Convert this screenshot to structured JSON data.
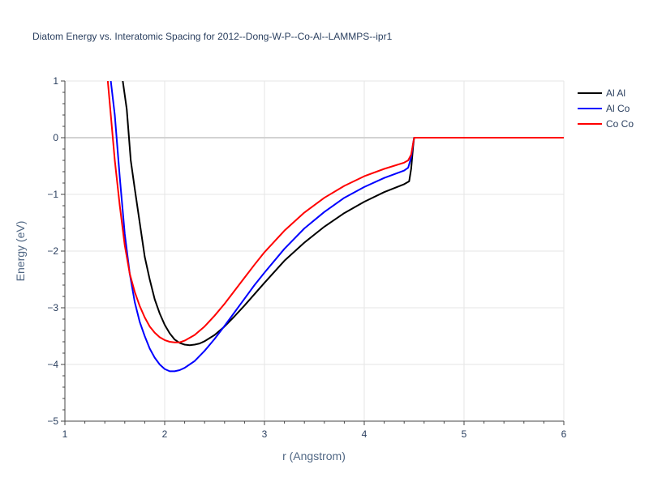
{
  "chart_data": {
    "type": "line",
    "title": "Diatom Energy vs. Interatomic Spacing for 2012--Dong-W-P--Co-Al--LAMMPS--ipr1",
    "xlabel": "r (Angstrom)",
    "ylabel": "Energy (eV)",
    "xlim": [
      1,
      6
    ],
    "ylim": [
      -5,
      1
    ],
    "xticks": [
      1,
      2,
      3,
      4,
      5,
      6
    ],
    "xtick_labels": [
      "1",
      "2",
      "3",
      "4",
      "5",
      "6"
    ],
    "yticks": [
      -5,
      -4,
      -3,
      -2,
      -1,
      0,
      1
    ],
    "ytick_labels": [
      "−5",
      "−4",
      "−3",
      "−2",
      "−1",
      "0",
      "1"
    ],
    "grid": true,
    "legend_position": "top-right",
    "series": [
      {
        "name": "Al Al",
        "color": "#000000",
        "x": [
          1.58,
          1.62,
          1.66,
          1.7,
          1.75,
          1.8,
          1.85,
          1.9,
          1.95,
          2.0,
          2.05,
          2.1,
          2.15,
          2.2,
          2.25,
          2.3,
          2.35,
          2.4,
          2.5,
          2.6,
          2.7,
          2.8,
          2.9,
          3.0,
          3.2,
          3.4,
          3.6,
          3.8,
          4.0,
          4.2,
          4.4,
          4.45,
          4.47,
          4.49,
          4.5,
          4.55,
          5.0,
          5.5,
          6.0
        ],
        "y": [
          1.0,
          0.5,
          -0.4,
          -0.9,
          -1.5,
          -2.1,
          -2.5,
          -2.85,
          -3.1,
          -3.3,
          -3.45,
          -3.56,
          -3.62,
          -3.65,
          -3.66,
          -3.65,
          -3.63,
          -3.59,
          -3.48,
          -3.33,
          -3.15,
          -2.96,
          -2.76,
          -2.56,
          -2.17,
          -1.85,
          -1.57,
          -1.33,
          -1.13,
          -0.96,
          -0.82,
          -0.77,
          -0.55,
          -0.15,
          0.0,
          0.0,
          0.0,
          0.0,
          0.0
        ]
      },
      {
        "name": "Al Co",
        "color": "#0000ff",
        "x": [
          1.46,
          1.5,
          1.55,
          1.6,
          1.65,
          1.7,
          1.75,
          1.8,
          1.85,
          1.9,
          1.95,
          2.0,
          2.05,
          2.1,
          2.15,
          2.2,
          2.25,
          2.3,
          2.4,
          2.5,
          2.6,
          2.7,
          2.8,
          2.9,
          3.0,
          3.2,
          3.4,
          3.6,
          3.8,
          4.0,
          4.2,
          4.4,
          4.44,
          4.47,
          4.49,
          4.5,
          4.55,
          5.0,
          5.5,
          6.0
        ],
        "y": [
          1.0,
          0.4,
          -0.7,
          -1.7,
          -2.4,
          -2.9,
          -3.25,
          -3.5,
          -3.72,
          -3.88,
          -4.0,
          -4.08,
          -4.12,
          -4.12,
          -4.1,
          -4.06,
          -4.0,
          -3.94,
          -3.76,
          -3.55,
          -3.32,
          -3.08,
          -2.84,
          -2.6,
          -2.38,
          -1.96,
          -1.6,
          -1.31,
          -1.06,
          -0.87,
          -0.71,
          -0.58,
          -0.53,
          -0.35,
          -0.1,
          0.0,
          0.0,
          0.0,
          0.0,
          0.0
        ]
      },
      {
        "name": "Co Co",
        "color": "#ff0000",
        "x": [
          1.43,
          1.47,
          1.5,
          1.55,
          1.6,
          1.65,
          1.7,
          1.75,
          1.8,
          1.85,
          1.9,
          1.95,
          2.0,
          2.05,
          2.1,
          2.15,
          2.2,
          2.3,
          2.4,
          2.5,
          2.6,
          2.7,
          2.8,
          2.9,
          3.0,
          3.2,
          3.4,
          3.6,
          3.8,
          4.0,
          4.2,
          4.4,
          4.44,
          4.47,
          4.49,
          4.5,
          4.55,
          5.0,
          5.5,
          6.0
        ],
        "y": [
          1.0,
          0.2,
          -0.4,
          -1.2,
          -1.9,
          -2.4,
          -2.72,
          -2.97,
          -3.17,
          -3.33,
          -3.44,
          -3.52,
          -3.57,
          -3.6,
          -3.61,
          -3.61,
          -3.58,
          -3.48,
          -3.33,
          -3.14,
          -2.93,
          -2.7,
          -2.47,
          -2.24,
          -2.02,
          -1.64,
          -1.32,
          -1.06,
          -0.85,
          -0.68,
          -0.55,
          -0.44,
          -0.4,
          -0.3,
          -0.1,
          0.0,
          0.0,
          0.0,
          0.0,
          0.0
        ]
      }
    ]
  }
}
